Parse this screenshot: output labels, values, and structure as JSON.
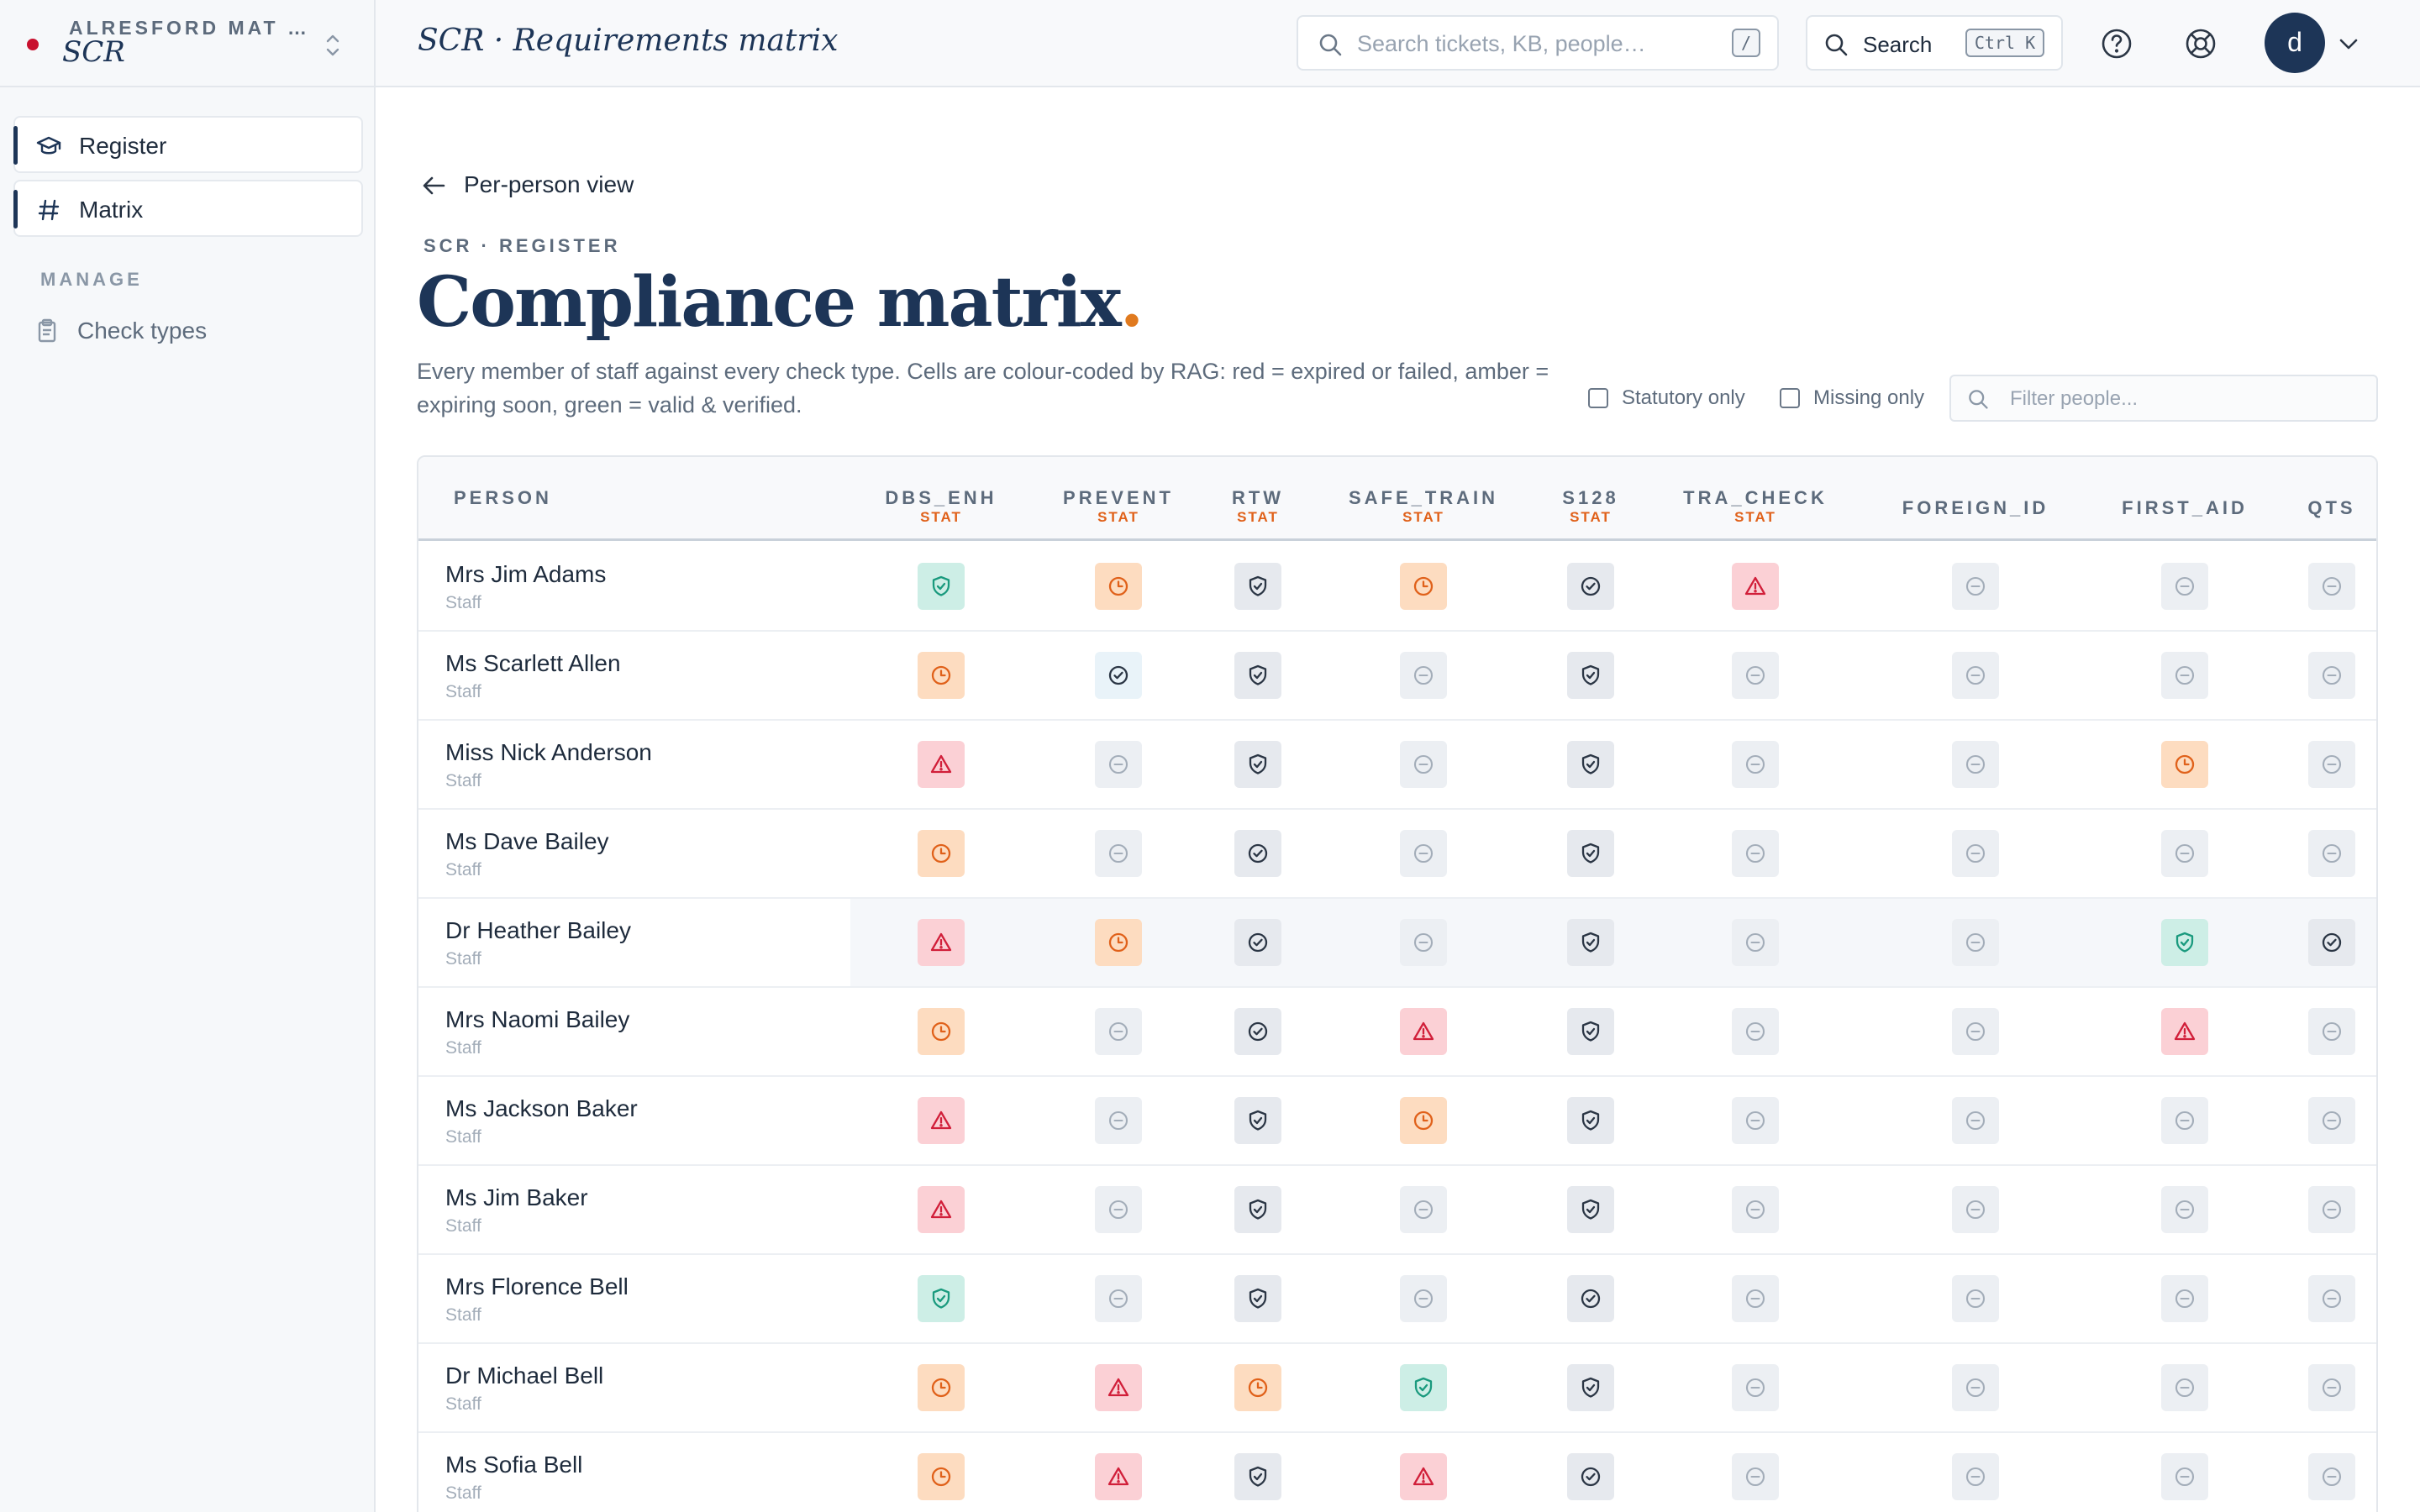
{
  "sidebar": {
    "org_name": "ALRESFORD MAT …",
    "app_name": "SCR",
    "nav": [
      {
        "label": "Register",
        "icon": "graduation-cap-icon"
      },
      {
        "label": "Matrix",
        "icon": "hash-icon"
      }
    ],
    "section_label": "MANAGE",
    "links": [
      {
        "label": "Check types",
        "icon": "clipboard-icon"
      }
    ]
  },
  "topbar": {
    "title": "SCR · Requirements matrix",
    "search_placeholder": "Search tickets, KB, people…",
    "search_shortcut": "/",
    "command_label": "Search",
    "command_shortcut": "Ctrl K",
    "avatar_initial": "d"
  },
  "main": {
    "back_label": "Per-person view",
    "eyebrow": "SCR · REGISTER",
    "title": "Compliance matrix",
    "title_dot": ".",
    "description": "Every member of staff against every check type. Cells are colour-coded by RAG: red = expired or failed, amber = expiring soon, green = valid & verified.",
    "filters": {
      "statutory_only": "Statutory only",
      "missing_only": "Missing only",
      "filter_placeholder": "Filter people..."
    }
  },
  "table": {
    "person_header": "PERSON",
    "columns": [
      {
        "code": "DBS_ENH",
        "tag": "STAT"
      },
      {
        "code": "PREVENT",
        "tag": "STAT"
      },
      {
        "code": "RTW",
        "tag": "STAT"
      },
      {
        "code": "SAFE_TRAIN",
        "tag": "STAT"
      },
      {
        "code": "S128",
        "tag": "STAT"
      },
      {
        "code": "TRA_CHECK",
        "tag": "STAT"
      },
      {
        "code": "FOREIGN_ID",
        "tag": ""
      },
      {
        "code": "FIRST_AID",
        "tag": ""
      },
      {
        "code": "QTS",
        "tag": ""
      }
    ],
    "rows": [
      {
        "name": "Mrs Jim Adams",
        "role": "Staff",
        "cells": [
          "valid",
          "expiring",
          "shield",
          "expiring",
          "verified",
          "expired",
          "missing",
          "missing",
          "missing"
        ]
      },
      {
        "name": "Ms Scarlett Allen",
        "role": "Staff",
        "cells": [
          "expiring",
          "verified-light",
          "shield",
          "missing",
          "shield",
          "missing",
          "missing",
          "missing",
          "missing"
        ]
      },
      {
        "name": "Miss Nick Anderson",
        "role": "Staff",
        "cells": [
          "expired",
          "missing",
          "shield",
          "missing",
          "shield",
          "missing",
          "missing",
          "expiring",
          "missing"
        ]
      },
      {
        "name": "Ms Dave Bailey",
        "role": "Staff",
        "cells": [
          "expiring",
          "missing",
          "verified",
          "missing",
          "shield",
          "missing",
          "missing",
          "missing",
          "missing"
        ]
      },
      {
        "name": "Dr Heather Bailey",
        "role": "Staff",
        "cells": [
          "expired",
          "expiring",
          "verified",
          "missing",
          "shield",
          "missing",
          "missing",
          "valid",
          "verified"
        ]
      },
      {
        "name": "Mrs Naomi Bailey",
        "role": "Staff",
        "cells": [
          "expiring",
          "missing",
          "verified",
          "expired",
          "shield",
          "missing",
          "missing",
          "expired",
          "missing"
        ]
      },
      {
        "name": "Ms Jackson Baker",
        "role": "Staff",
        "cells": [
          "expired",
          "missing",
          "shield",
          "expiring",
          "shield",
          "missing",
          "missing",
          "missing",
          "missing"
        ]
      },
      {
        "name": "Ms Jim Baker",
        "role": "Staff",
        "cells": [
          "expired",
          "missing",
          "shield",
          "missing",
          "shield",
          "missing",
          "missing",
          "missing",
          "missing"
        ]
      },
      {
        "name": "Mrs Florence Bell",
        "role": "Staff",
        "cells": [
          "valid",
          "missing",
          "shield",
          "missing",
          "verified",
          "missing",
          "missing",
          "missing",
          "missing"
        ]
      },
      {
        "name": "Dr Michael Bell",
        "role": "Staff",
        "cells": [
          "expiring",
          "expired",
          "expiring",
          "valid",
          "shield",
          "missing",
          "missing",
          "missing",
          "missing"
        ]
      },
      {
        "name": "Ms Sofia Bell",
        "role": "Staff",
        "cells": [
          "expiring",
          "expired",
          "shield",
          "expired",
          "verified",
          "missing",
          "missing",
          "missing",
          "missing"
        ]
      }
    ],
    "highlighted_row": 4
  },
  "colors": {
    "valid": "#1a9a7e",
    "amber": "#e0611a",
    "red": "#d11f3a",
    "neutral": "#2b3645",
    "missing": "#a3adb9",
    "brand": "#1d3557"
  }
}
